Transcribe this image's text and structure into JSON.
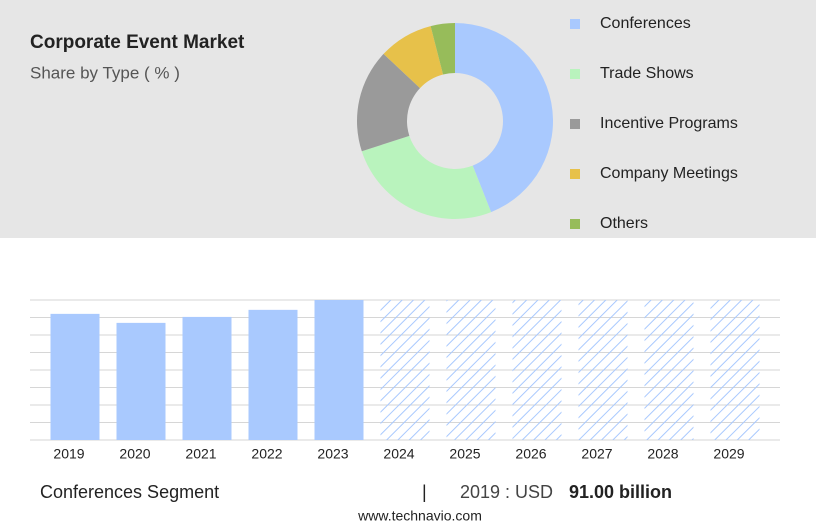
{
  "chart_data": [
    {
      "type": "pie",
      "title": "Corporate Event Market",
      "subtitle": "Share by Type ( % )",
      "categories": [
        "Conferences",
        "Trade Shows",
        "Incentive Programs",
        "Company Meetings",
        "Others"
      ],
      "values": [
        44,
        26,
        17,
        9,
        4
      ],
      "colors": [
        "#a9c9fe",
        "#b9f3bd",
        "#9a9a9a",
        "#e7c14a",
        "#97bc5a"
      ]
    },
    {
      "type": "bar",
      "categories": [
        "2019",
        "2020",
        "2021",
        "2022",
        "2023",
        "2024",
        "2025",
        "2026",
        "2027",
        "2028",
        "2029"
      ],
      "values": [
        91,
        84.5,
        88.8,
        93.9,
        101,
        null,
        null,
        null,
        null,
        null,
        null
      ],
      "color": "#a9c9fe",
      "ylim": [
        0,
        101
      ],
      "grid": true
    }
  ],
  "footer": {
    "segment": "Conferences Segment",
    "separator": "|",
    "year_label": "2019 : USD",
    "value": "91.00 billion",
    "source": "www.technavio.com"
  }
}
